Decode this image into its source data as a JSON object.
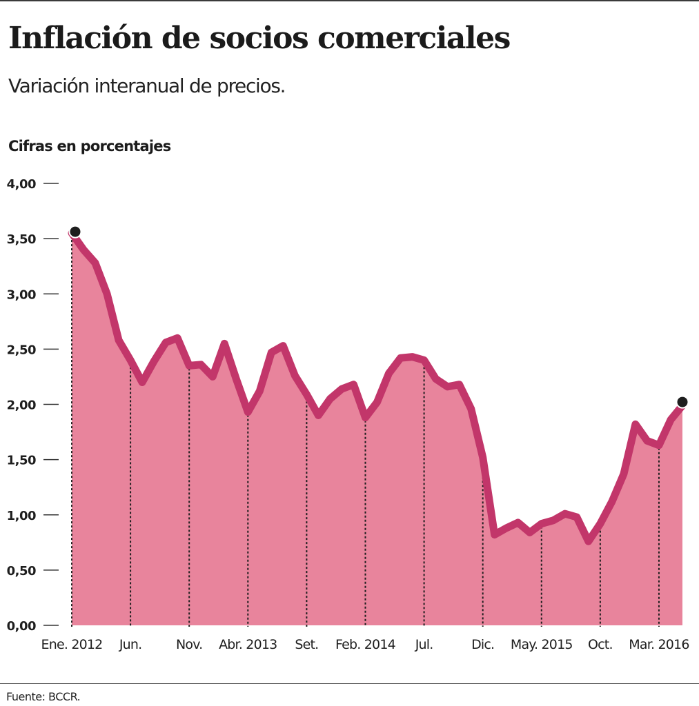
{
  "header": {
    "title": "Inflación de socios comerciales",
    "subtitle": "Variación interanual de precios.",
    "unit_label": "Cifras en porcentajes"
  },
  "footer": {
    "source": "Fuente: BCCR."
  },
  "colors": {
    "line": "#C2366A",
    "fill": "#E8849C",
    "marker": "#1e1e1e",
    "text": "#1e1e1e"
  },
  "chart_data": {
    "type": "area",
    "title": "Inflación de socios comerciales",
    "subtitle": "Variación interanual de precios.",
    "ylabel": "Cifras en porcentajes",
    "xlabel": "",
    "ylim": [
      0,
      4
    ],
    "yticks": [
      {
        "value": 4.0,
        "label": "4,00"
      },
      {
        "value": 3.5,
        "label": "3,50"
      },
      {
        "value": 3.0,
        "label": "3,00"
      },
      {
        "value": 2.5,
        "label": "2,50"
      },
      {
        "value": 2.0,
        "label": "2,00"
      },
      {
        "value": 1.5,
        "label": "1,50"
      },
      {
        "value": 1.0,
        "label": "1,00"
      },
      {
        "value": 0.5,
        "label": "0,50"
      },
      {
        "value": 0.0,
        "label": "0,00"
      }
    ],
    "xlim": [
      0,
      52
    ],
    "xticks": [
      {
        "month": 0,
        "label": "Ene. 2012"
      },
      {
        "month": 5,
        "label": "Jun."
      },
      {
        "month": 10,
        "label": "Nov."
      },
      {
        "month": 15,
        "label": "Abr. 2013"
      },
      {
        "month": 20,
        "label": "Set."
      },
      {
        "month": 25,
        "label": "Feb. 2014"
      },
      {
        "month": 30,
        "label": "Jul."
      },
      {
        "month": 35,
        "label": "Dic."
      },
      {
        "month": 40,
        "label": "May. 2015"
      },
      {
        "month": 45,
        "label": "Oct."
      },
      {
        "month": 50,
        "label": "Mar. 2016"
      }
    ],
    "grid": false,
    "legend": "none",
    "series": [
      {
        "name": "Inflación de socios comerciales",
        "x": [
          0,
          1,
          2,
          3,
          4,
          5,
          6,
          7,
          8,
          9,
          10,
          11,
          12,
          13,
          14,
          15,
          16,
          17,
          18,
          19,
          20,
          21,
          22,
          23,
          24,
          25,
          26,
          27,
          28,
          29,
          30,
          31,
          32,
          33,
          34,
          35,
          36,
          37,
          38,
          39,
          40,
          41,
          42,
          43,
          44,
          45,
          46,
          47,
          48,
          49,
          50,
          51,
          52
        ],
        "values": [
          3.55,
          3.4,
          3.28,
          3.0,
          2.58,
          2.4,
          2.2,
          2.39,
          2.56,
          2.6,
          2.35,
          2.36,
          2.25,
          2.55,
          2.23,
          1.93,
          2.12,
          2.47,
          2.53,
          2.26,
          2.09,
          1.9,
          2.05,
          2.14,
          2.18,
          1.88,
          2.02,
          2.28,
          2.42,
          2.43,
          2.4,
          2.23,
          2.16,
          2.18,
          1.96,
          1.52,
          0.82,
          0.88,
          0.93,
          0.84,
          0.92,
          0.95,
          1.01,
          0.98,
          0.76,
          0.92,
          1.12,
          1.37,
          1.82,
          1.67,
          1.63,
          1.86,
          1.99
        ]
      }
    ],
    "markers": [
      {
        "month": 0,
        "value": 3.55
      },
      {
        "month": 52,
        "value": 1.99
      }
    ]
  }
}
